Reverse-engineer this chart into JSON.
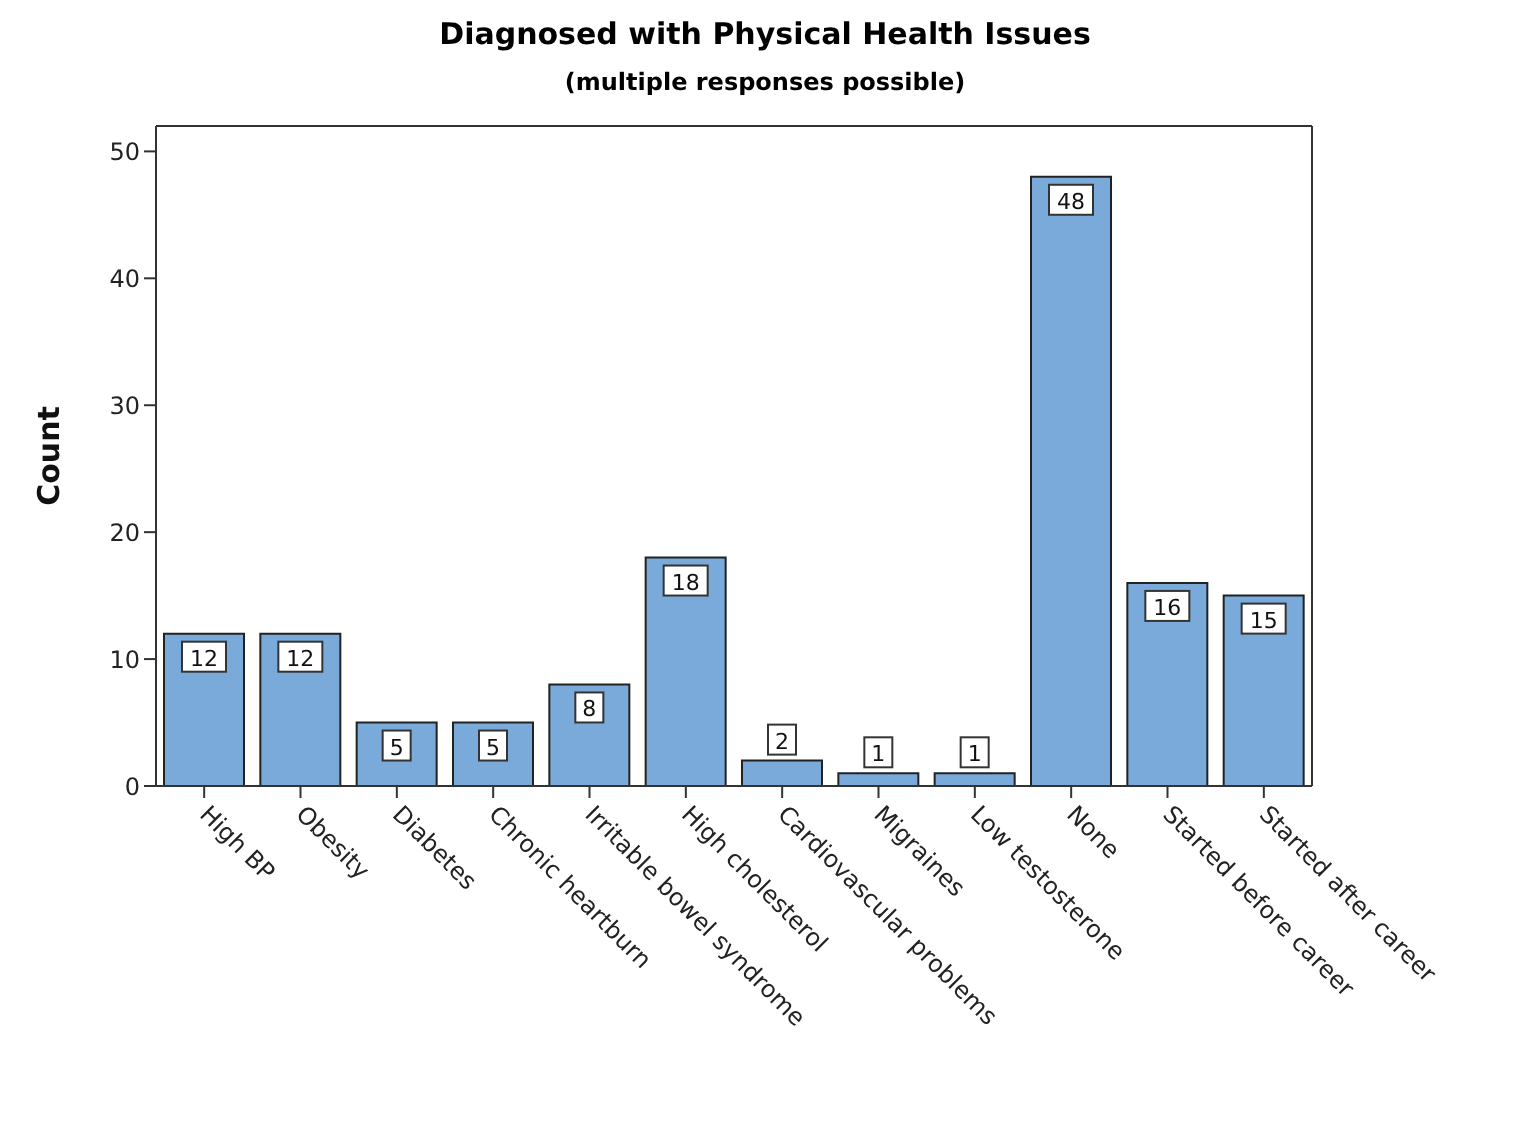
{
  "chart_data": {
    "type": "bar",
    "title": "Diagnosed with Physical Health Issues",
    "subtitle": "(multiple responses possible)",
    "ylabel": "Count",
    "categories": [
      "High BP",
      "Obesity",
      "Diabetes",
      "Chronic heartburn",
      "Irritable bowel syndrome",
      "High cholesterol",
      "Cardiovascular problems",
      "Migraines",
      "Low testosterone",
      "None",
      "Started before career",
      "Started after career"
    ],
    "values": [
      12,
      12,
      5,
      5,
      8,
      18,
      2,
      1,
      1,
      48,
      16,
      15
    ],
    "color": "#7aaad9",
    "ylim": [
      0,
      52
    ],
    "yticks": [
      0,
      10,
      20,
      30,
      40,
      50
    ],
    "grid": false,
    "data_labels": true
  }
}
